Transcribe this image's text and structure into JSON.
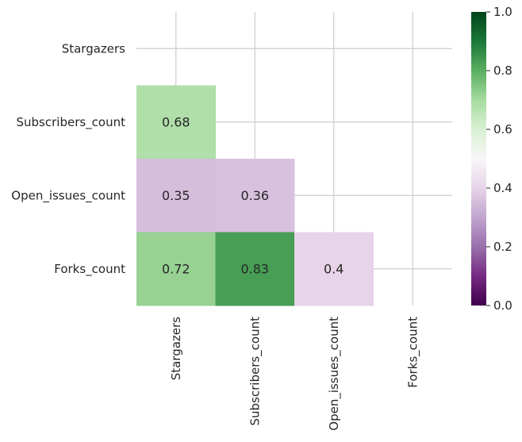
{
  "chart_data": {
    "type": "heatmap",
    "title": "",
    "xlabel": "",
    "ylabel": "",
    "x_categories": [
      "Stargazers",
      "Subscribers_count",
      "Open_issues_count",
      "Forks_count"
    ],
    "y_categories": [
      "Stargazers",
      "Subscribers_count",
      "Open_issues_count",
      "Forks_count"
    ],
    "cells": [
      {
        "row": 1,
        "col": 0,
        "value": 0.68,
        "label": "0.68"
      },
      {
        "row": 2,
        "col": 0,
        "value": 0.35,
        "label": "0.35"
      },
      {
        "row": 2,
        "col": 1,
        "value": 0.36,
        "label": "0.36"
      },
      {
        "row": 3,
        "col": 0,
        "value": 0.72,
        "label": "0.72"
      },
      {
        "row": 3,
        "col": 1,
        "value": 0.83,
        "label": "0.83"
      },
      {
        "row": 3,
        "col": 2,
        "value": 0.4,
        "label": "0.4"
      }
    ],
    "mask": "upper-triangle-including-diagonal",
    "colormap": "PRGn",
    "vmin": 0,
    "vmax": 1,
    "colorbar_ticks": [
      "0.0",
      "0.2",
      "0.4",
      "0.6",
      "0.8",
      "1.0"
    ],
    "grid": true
  }
}
